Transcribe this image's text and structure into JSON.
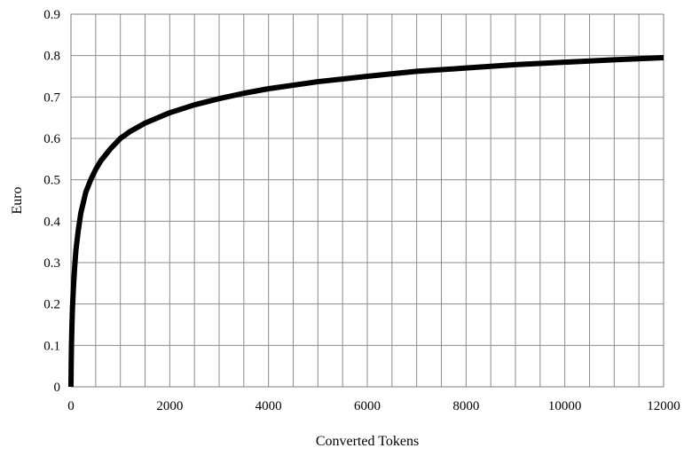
{
  "chart_data": {
    "type": "line",
    "title": "",
    "xlabel": "Converted Tokens",
    "ylabel": "Euro",
    "xlim": [
      0,
      12000
    ],
    "ylim": [
      0,
      0.9
    ],
    "x_ticks": [
      "0",
      "2000",
      "4000",
      "6000",
      "8000",
      "10000",
      "12000"
    ],
    "y_ticks": [
      "0",
      "0.1",
      "0.2",
      "0.3",
      "0.4",
      "0.5",
      "0.6",
      "0.7",
      "0.8",
      "0.9"
    ],
    "grid": true,
    "legend": "none",
    "series": [
      {
        "color": "#000000",
        "x": [
          0,
          5,
          10,
          20,
          30,
          50,
          75,
          100,
          150,
          200,
          300,
          400,
          500,
          600,
          800,
          1000,
          1200,
          1500,
          2000,
          2500,
          3000,
          3500,
          4000,
          5000,
          6000,
          7000,
          8000,
          9000,
          10000,
          11000,
          12000
        ],
        "y": [
          0,
          0.06,
          0.1,
          0.15,
          0.19,
          0.24,
          0.29,
          0.33,
          0.38,
          0.42,
          0.47,
          0.5,
          0.525,
          0.545,
          0.575,
          0.6,
          0.617,
          0.637,
          0.662,
          0.681,
          0.696,
          0.709,
          0.72,
          0.737,
          0.75,
          0.762,
          0.77,
          0.778,
          0.784,
          0.79,
          0.795
        ]
      }
    ]
  }
}
